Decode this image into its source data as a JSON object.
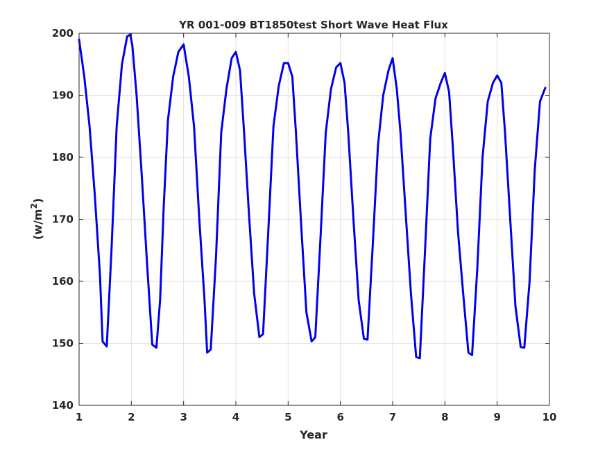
{
  "chart_data": {
    "type": "line",
    "title": "YR 001-009 BT1850test Short Wave Heat Flux",
    "xlabel": "Year",
    "ylabel_base": "(w/m",
    "ylabel_sup": "2",
    "ylabel_end": ")",
    "xlim": [
      1,
      10
    ],
    "ylim": [
      140,
      200
    ],
    "xticks": [
      "1",
      "2",
      "3",
      "4",
      "5",
      "6",
      "7",
      "8",
      "9",
      "10"
    ],
    "yticks": [
      "140",
      "150",
      "160",
      "170",
      "180",
      "190",
      "200"
    ],
    "grid": true,
    "line_color": "#0000ee",
    "series": [
      {
        "x": [
          1.0,
          1.1,
          1.2,
          1.3,
          1.4,
          1.45,
          1.53,
          1.62,
          1.72,
          1.82,
          1.92,
          1.98,
          2.02,
          2.1,
          2.2,
          2.3,
          2.4,
          2.48,
          2.55,
          2.62,
          2.7,
          2.8,
          2.9,
          3.0,
          3.1,
          3.2,
          3.3,
          3.4,
          3.45,
          3.52,
          3.62,
          3.72,
          3.82,
          3.92,
          4.0,
          4.08,
          4.15,
          4.25,
          4.35,
          4.45,
          4.52,
          4.62,
          4.72,
          4.82,
          4.92,
          5.0,
          5.08,
          5.15,
          5.25,
          5.35,
          5.45,
          5.52,
          5.62,
          5.72,
          5.82,
          5.92,
          6.0,
          6.08,
          6.15,
          6.25,
          6.35,
          6.45,
          6.52,
          6.62,
          6.72,
          6.82,
          6.92,
          7.0,
          7.08,
          7.15,
          7.25,
          7.35,
          7.45,
          7.52,
          7.62,
          7.72,
          7.82,
          7.92,
          8.0,
          8.08,
          8.15,
          8.25,
          8.35,
          8.45,
          8.52,
          8.62,
          8.72,
          8.82,
          8.92,
          9.0,
          9.08,
          9.15,
          9.25,
          9.35,
          9.45,
          9.52,
          9.62,
          9.72,
          9.82,
          9.92
        ],
        "y": [
          199.0,
          193.0,
          185.0,
          174.0,
          161.0,
          150.3,
          149.5,
          165.0,
          185.0,
          195.0,
          199.5,
          199.8,
          198.0,
          190.0,
          177.0,
          163.0,
          149.8,
          149.3,
          157.0,
          172.0,
          186.0,
          193.0,
          197.0,
          198.2,
          193.0,
          185.0,
          170.0,
          157.0,
          148.5,
          149.0,
          164.0,
          184.0,
          191.0,
          196.0,
          197.0,
          194.0,
          185.0,
          171.0,
          158.0,
          151.0,
          151.5,
          168.0,
          185.0,
          191.5,
          195.2,
          195.2,
          193.0,
          184.0,
          169.0,
          155.0,
          150.3,
          151.0,
          167.0,
          184.0,
          191.0,
          194.5,
          195.2,
          192.0,
          184.0,
          170.0,
          157.0,
          150.7,
          150.6,
          166.0,
          182.0,
          190.0,
          194.0,
          196.0,
          191.0,
          184.0,
          171.0,
          158.0,
          147.8,
          147.6,
          165.0,
          183.0,
          189.5,
          192.0,
          193.6,
          190.5,
          182.0,
          168.0,
          158.0,
          148.5,
          148.1,
          162.0,
          180.0,
          189.0,
          192.0,
          193.2,
          192.0,
          184.0,
          170.0,
          156.0,
          149.4,
          149.3,
          160.0,
          178.0,
          189.0,
          191.2
        ]
      }
    ]
  }
}
